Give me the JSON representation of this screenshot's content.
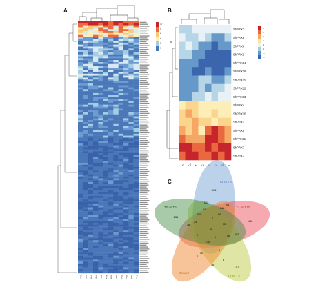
{
  "panels": {
    "a": "A",
    "b": "B",
    "c": "C"
  },
  "heatmapA": {
    "samples": [
      "S-a",
      "S-b",
      "P-a",
      "P-b",
      "P-c",
      "M-a",
      "M-b",
      "M-c",
      "P-d",
      "P-e",
      "M-d",
      "F-a"
    ],
    "scale": [
      "10",
      "8",
      "6",
      "4",
      "2",
      "0"
    ],
    "row_count": 130,
    "gene_label_style": "ShPRX"
  },
  "heatmapB": {
    "samples": [
      "T0",
      "T3",
      "T2",
      "T5",
      "T4",
      "T6",
      "T5",
      "T1"
    ],
    "genes": [
      "ShPRX2",
      "ShPRX8",
      "ShPRX6",
      "ShPRX1",
      "ShPRX14",
      "ShPRX16",
      "ShPRX15",
      "ShPRX12",
      "ShPRX13",
      "ShPRX4",
      "ShPRX10",
      "ShPRX3",
      "ShPRX5",
      "ShPRX11",
      "ShPRX7",
      "ShPRX7"
    ],
    "scale": [
      "5",
      "4",
      "3",
      "2",
      "1",
      "0",
      "-1",
      "-2"
    ],
    "clusters": [
      "II",
      "I"
    ]
  },
  "venn": {
    "labels": [
      "T0 vs T5",
      "T3 vs T8",
      "T4 vs T10",
      "T8 vs T4",
      "Group I"
    ],
    "label_colors": [
      "#6b9bd2",
      "#e8434f",
      "#a8b82e",
      "#f08a34",
      "#3f8a3f"
    ],
    "numbers": [
      "313",
      "562",
      "567",
      "74",
      "38",
      "60",
      "436",
      "565",
      "231",
      "548",
      "14",
      "48",
      "2",
      "236",
      "562",
      "9",
      "35",
      "5",
      "147",
      "32",
      "7",
      "6",
      "36",
      "8",
      "1"
    ]
  }
}
